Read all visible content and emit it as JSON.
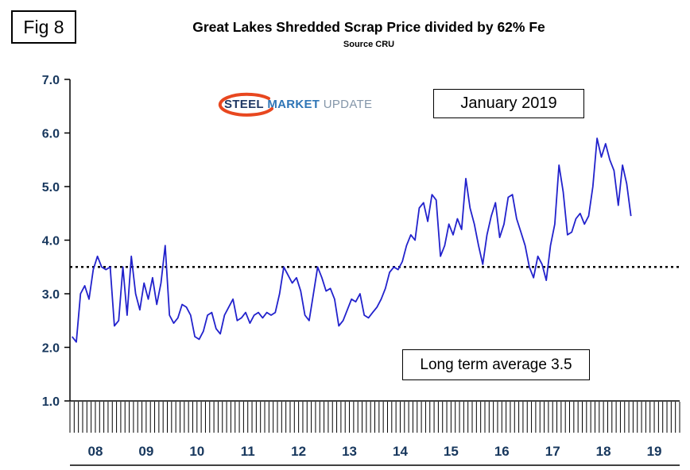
{
  "figure": {
    "label": "Fig 8"
  },
  "header": {
    "title": "Great Lakes Shredded Scrap Price divided by 62% Fe",
    "subtitle": "Source CRU"
  },
  "logo": {
    "steel": "STEEL",
    "market": "MARKET",
    "update": "UPDATE",
    "steel_color": "#1f3864",
    "market_color": "#2e75b6",
    "update_color": "#8496a9",
    "swoosh_color": "#e8471f"
  },
  "annotations": {
    "period_label": "January 2019",
    "average_label": "Long term average 3.5"
  },
  "chart_data": {
    "type": "line",
    "title": "Great Lakes Shredded Scrap Price divided by 62% Fe",
    "subtitle": "Source CRU",
    "x_start": "2008-01",
    "x_freq": "monthly",
    "year_labels": [
      "08",
      "09",
      "10",
      "11",
      "12",
      "13",
      "14",
      "15",
      "16",
      "17",
      "18",
      "19"
    ],
    "yticks": [
      1,
      2,
      3,
      4,
      5,
      6,
      7
    ],
    "ytick_labels": [
      "1.0",
      "2.0",
      "3.0",
      "4.0",
      "5.0",
      "6.0",
      "7.0"
    ],
    "ylim": [
      1.0,
      7.0
    ],
    "reference_line": 3.5,
    "reference_line_label": "Long term average 3.5",
    "annotation": "January 2019",
    "grid": false,
    "line_color": "#2222cc",
    "axis_label_color": "#17375d",
    "values": [
      2.2,
      2.1,
      3.0,
      3.15,
      2.9,
      3.45,
      3.7,
      3.5,
      3.45,
      3.5,
      2.4,
      2.5,
      3.5,
      2.6,
      3.7,
      3.0,
      2.7,
      3.2,
      2.9,
      3.3,
      2.8,
      3.2,
      3.9,
      2.6,
      2.45,
      2.55,
      2.8,
      2.75,
      2.6,
      2.2,
      2.15,
      2.3,
      2.6,
      2.65,
      2.35,
      2.25,
      2.6,
      2.75,
      2.9,
      2.5,
      2.55,
      2.65,
      2.45,
      2.6,
      2.65,
      2.55,
      2.65,
      2.6,
      2.65,
      3.0,
      3.5,
      3.35,
      3.2,
      3.3,
      3.05,
      2.6,
      2.5,
      3.0,
      3.5,
      3.3,
      3.05,
      3.1,
      2.9,
      2.4,
      2.5,
      2.7,
      2.9,
      2.85,
      3.0,
      2.6,
      2.55,
      2.65,
      2.75,
      2.9,
      3.1,
      3.4,
      3.5,
      3.45,
      3.6,
      3.9,
      4.1,
      4.0,
      4.6,
      4.7,
      4.35,
      4.85,
      4.75,
      3.7,
      3.9,
      4.3,
      4.1,
      4.4,
      4.2,
      5.15,
      4.6,
      4.3,
      3.9,
      3.55,
      4.1,
      4.45,
      4.7,
      4.05,
      4.3,
      4.8,
      4.85,
      4.4,
      4.15,
      3.9,
      3.5,
      3.3,
      3.7,
      3.55,
      3.25,
      3.9,
      4.3,
      5.4,
      4.9,
      4.1,
      4.15,
      4.4,
      4.5,
      4.3,
      4.45,
      5.0,
      5.9,
      5.55,
      5.8,
      5.5,
      5.3,
      4.65,
      5.4,
      5.05,
      4.45
    ]
  }
}
